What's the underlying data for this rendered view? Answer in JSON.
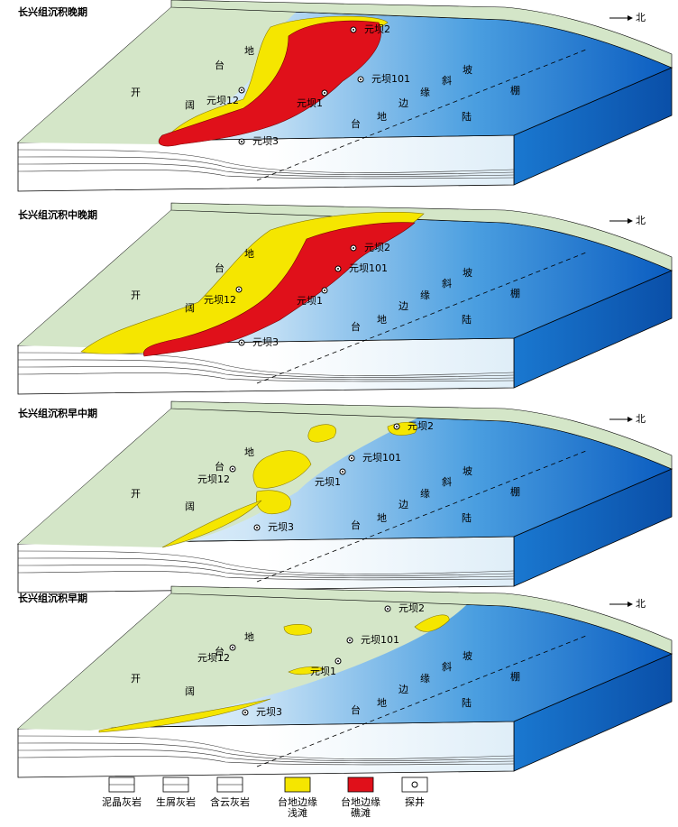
{
  "panels": [
    {
      "title": "长兴组沉积晚期"
    },
    {
      "title": "长兴组沉积中晚期"
    },
    {
      "title": "长兴组沉积早中期"
    },
    {
      "title": "长兴组沉积早期"
    }
  ],
  "platform_labels": [
    "开",
    "阔",
    "台",
    "地"
  ],
  "slope_labels": [
    "台",
    "地",
    "边",
    "缘",
    "斜",
    "坡",
    "陆",
    "棚"
  ],
  "wells": [
    "元坝2",
    "元坝101",
    "元坝1",
    "元坝12",
    "元坝3"
  ],
  "north": "北",
  "legend": [
    {
      "label": [
        "泥晶灰岩"
      ]
    },
    {
      "label": [
        "生屑灰岩"
      ]
    },
    {
      "label": [
        "含云灰岩"
      ]
    },
    {
      "label": [
        "台地边缘",
        "浅滩"
      ]
    },
    {
      "label": [
        "台地边缘",
        "礁滩"
      ]
    },
    {
      "label": [
        "探井"
      ]
    }
  ]
}
